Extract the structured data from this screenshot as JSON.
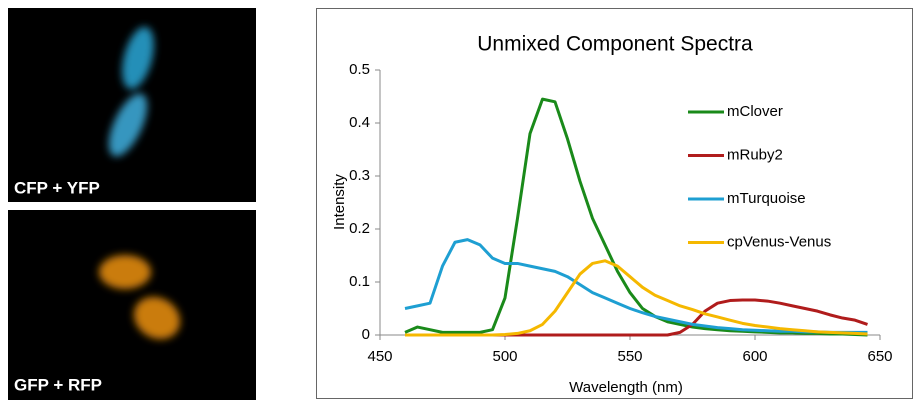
{
  "panels": [
    {
      "label": "CFP + YFP"
    },
    {
      "label": "GFP + RFP"
    }
  ],
  "chart_data": {
    "type": "line",
    "title": "Unmixed Component Spectra",
    "x_label": "Wavelength (nm)",
    "y_label": "Intensity",
    "x": [
      460,
      465,
      470,
      475,
      480,
      485,
      490,
      495,
      500,
      505,
      510,
      515,
      520,
      525,
      530,
      535,
      540,
      545,
      550,
      555,
      560,
      565,
      570,
      575,
      580,
      585,
      590,
      595,
      600,
      605,
      610,
      615,
      620,
      625,
      630,
      635,
      640,
      645
    ],
    "series": [
      {
        "name": "mClover",
        "color": "#1a8a1a",
        "values": [
          0.005,
          0.015,
          0.01,
          0.005,
          0.005,
          0.005,
          0.005,
          0.01,
          0.07,
          0.22,
          0.38,
          0.445,
          0.44,
          0.37,
          0.29,
          0.22,
          0.17,
          0.12,
          0.08,
          0.05,
          0.035,
          0.025,
          0.02,
          0.015,
          0.012,
          0.01,
          0.008,
          0.007,
          0.006,
          0.005,
          0.004,
          0.004,
          0.003,
          0.003,
          0.002,
          0.002,
          0.001,
          0
        ]
      },
      {
        "name": "mRuby2",
        "color": "#b01c1c",
        "values": [
          0,
          0,
          0,
          0,
          0,
          0,
          0,
          0,
          0,
          0,
          0,
          0,
          0,
          0,
          0,
          0,
          0,
          0,
          0,
          0,
          0,
          0,
          0.005,
          0.02,
          0.045,
          0.06,
          0.065,
          0.066,
          0.066,
          0.064,
          0.06,
          0.055,
          0.05,
          0.045,
          0.038,
          0.032,
          0.028,
          0.02
        ]
      },
      {
        "name": "mTurquoise",
        "color": "#1e9fd2",
        "values": [
          0.05,
          0.055,
          0.06,
          0.13,
          0.175,
          0.18,
          0.17,
          0.145,
          0.135,
          0.135,
          0.13,
          0.125,
          0.12,
          0.11,
          0.095,
          0.08,
          0.07,
          0.06,
          0.05,
          0.042,
          0.035,
          0.03,
          0.025,
          0.02,
          0.017,
          0.014,
          0.012,
          0.01,
          0.009,
          0.008,
          0.007,
          0.007,
          0.006,
          0.006,
          0.005,
          0.005,
          0.005,
          0.005
        ]
      },
      {
        "name": "cpVenus-Venus",
        "color": "#f5b800",
        "values": [
          0,
          0,
          0,
          0,
          0,
          0,
          0,
          0,
          0.001,
          0.003,
          0.008,
          0.02,
          0.045,
          0.08,
          0.115,
          0.135,
          0.14,
          0.13,
          0.11,
          0.09,
          0.075,
          0.065,
          0.055,
          0.048,
          0.04,
          0.034,
          0.028,
          0.022,
          0.018,
          0.015,
          0.012,
          0.01,
          0.008,
          0.006,
          0.005,
          0.004,
          0.003,
          0.002
        ]
      }
    ],
    "xlim": [
      450,
      650
    ],
    "xticks": [
      450,
      500,
      550,
      600,
      650
    ],
    "ylim": [
      0,
      0.5
    ],
    "yticks": [
      0,
      0.1,
      0.2,
      0.3,
      0.4,
      0.5
    ],
    "legend": "right"
  }
}
